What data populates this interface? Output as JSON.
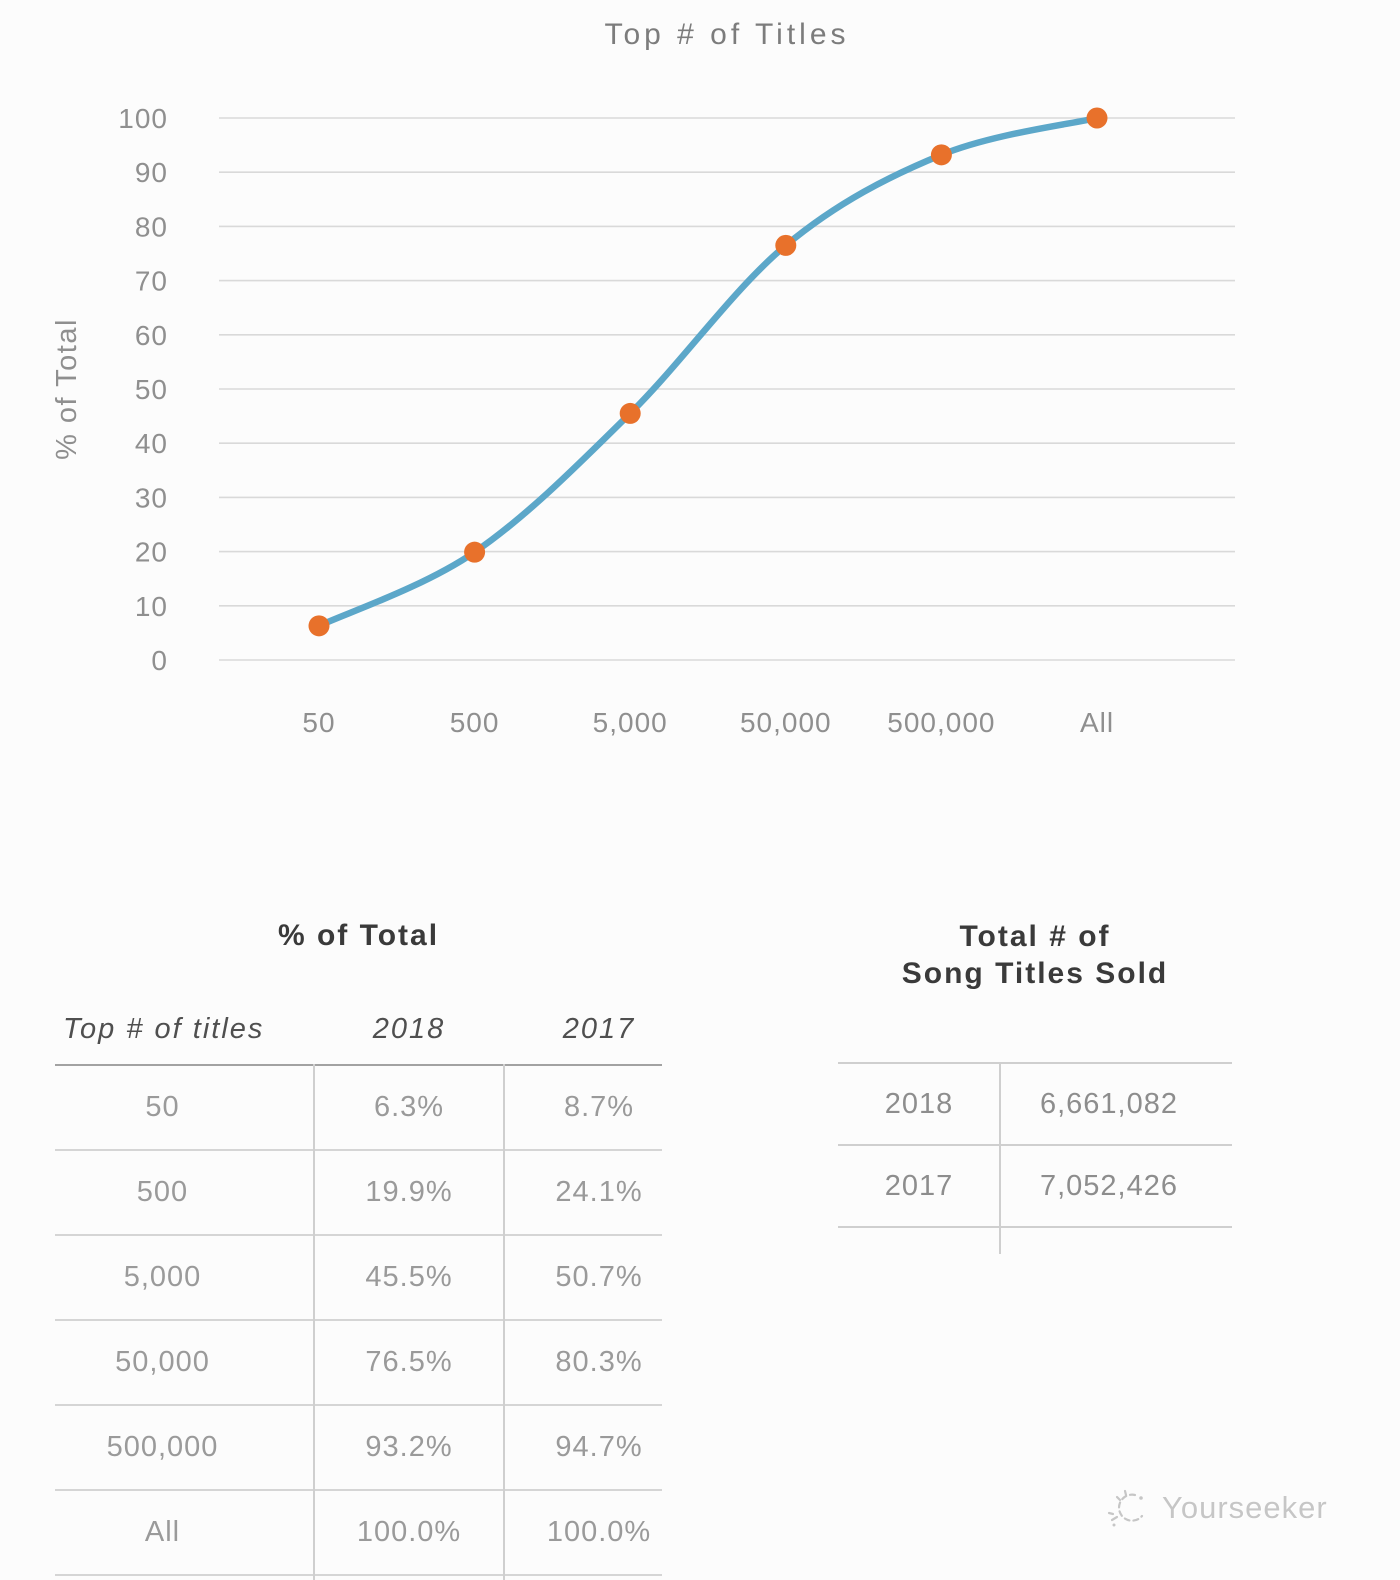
{
  "chart_data": {
    "type": "line",
    "title": "Top # of Titles",
    "xlabel": "",
    "ylabel": "% of Total",
    "categories": [
      "50",
      "500",
      "5,000",
      "50,000",
      "500,000",
      "All"
    ],
    "series": [
      {
        "name": "2018",
        "values": [
          6.3,
          19.9,
          45.5,
          76.5,
          93.2,
          100.0
        ]
      }
    ],
    "ylim": [
      0,
      100
    ],
    "yticks": [
      0,
      10,
      20,
      30,
      40,
      50,
      60,
      70,
      80,
      90,
      100
    ],
    "grid": true,
    "legend": false,
    "colors": {
      "line": "#5ca7c9",
      "marker": "#e8712b",
      "grid": "#d9d9d9",
      "axis_text": "#8f8f8f",
      "title_text": "#7c7c7c"
    }
  },
  "tables": {
    "percent_of_total": {
      "title": "% of Total",
      "columns": [
        "Top # of titles",
        "2018",
        "2017"
      ],
      "rows": [
        [
          "50",
          "6.3%",
          "8.7%"
        ],
        [
          "500",
          "19.9%",
          "24.1%"
        ],
        [
          "5,000",
          "45.5%",
          "50.7%"
        ],
        [
          "50,000",
          "76.5%",
          "80.3%"
        ],
        [
          "500,000",
          "93.2%",
          "94.7%"
        ],
        [
          "All",
          "100.0%",
          "100.0%"
        ]
      ]
    },
    "titles_sold": {
      "title_line1": "Total # of",
      "title_line2": "Song Titles Sold",
      "rows": [
        [
          "2018",
          "6,661,082"
        ],
        [
          "2017",
          "7,052,426"
        ]
      ]
    }
  },
  "watermark": {
    "label": "Yourseeker"
  }
}
